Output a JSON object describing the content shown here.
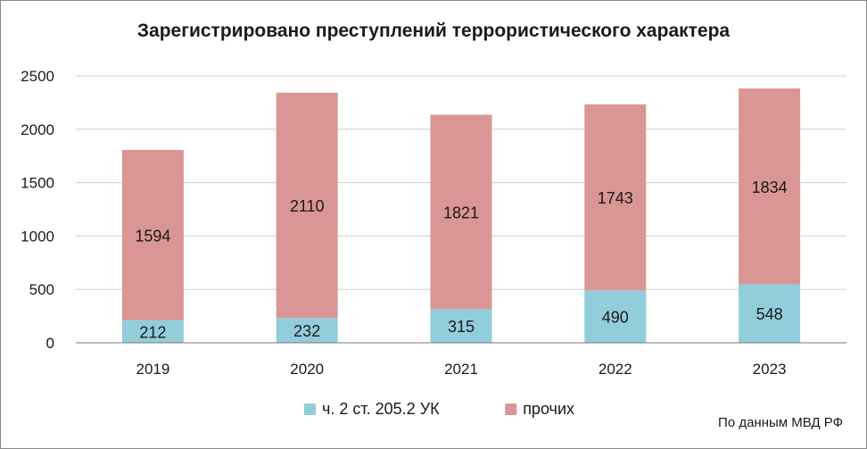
{
  "source_note": "По данным МВД РФ",
  "colors": {
    "series1": "#92cddc",
    "series2": "#da9694",
    "grid": "#d0d0d0",
    "axis": "#7a7a7a",
    "text": "#1a1a1a"
  },
  "chart_data": {
    "type": "bar",
    "stacked": true,
    "title": "Зарегистрировано преступлений террористического характера",
    "categories": [
      "2019",
      "2020",
      "2021",
      "2022",
      "2023"
    ],
    "series": [
      {
        "name": "ч. 2 ст. 205.2 УК",
        "values": [
          212,
          232,
          315,
          490,
          548
        ],
        "color": "#92cddc"
      },
      {
        "name": "прочих",
        "values": [
          1594,
          2110,
          1821,
          1743,
          1834
        ],
        "color": "#da9694"
      }
    ],
    "ylim": [
      0,
      2500
    ],
    "yticks": [
      0,
      500,
      1000,
      1500,
      2000,
      2500
    ],
    "grid": true,
    "legend": "bottom"
  }
}
